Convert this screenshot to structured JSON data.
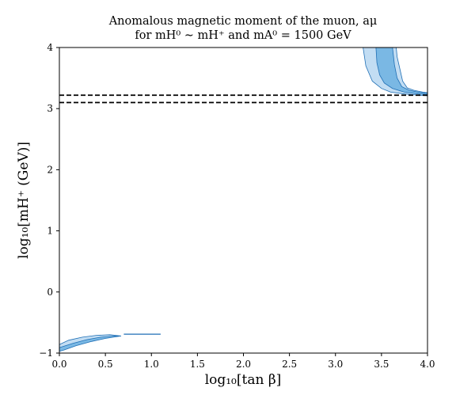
{
  "chart_data": {
    "type": "area",
    "title_line1": "Anomalous magnetic moment of the muon, aμ",
    "title_line2": "for mH⁰ ∼ mH⁺ and mA⁰ = 1500 GeV",
    "xlabel": "log₁₀[tan β]",
    "ylabel": "log₁₀[mH⁺ (GeV)]",
    "xlim": [
      0.0,
      4.0
    ],
    "ylim": [
      -1,
      4
    ],
    "x_ticks": [
      0.0,
      0.5,
      1.0,
      1.5,
      2.0,
      2.5,
      3.0,
      3.5,
      4.0
    ],
    "x_tick_labels": [
      "0.0",
      "0.5",
      "1.0",
      "1.5",
      "2.0",
      "2.5",
      "3.0",
      "3.5",
      "4.0"
    ],
    "y_ticks": [
      -1,
      0,
      1,
      2,
      3,
      4
    ],
    "y_tick_labels": [
      "−1",
      "0",
      "1",
      "2",
      "3",
      "4"
    ],
    "grid": false,
    "colors": {
      "outer_band": "#c2ddf3",
      "inner_band": "#7ab8e4",
      "band_edge": "#1f6fb5",
      "reference_line": "#000000"
    },
    "reference_lines": [
      {
        "orientation": "horizontal",
        "y": 3.22,
        "style": "dashed"
      },
      {
        "orientation": "horizontal",
        "y": 3.1,
        "style": "dashed"
      }
    ],
    "regions": [
      {
        "kind": "outer",
        "polygon": [
          [
            3.3,
            4.0
          ],
          [
            3.33,
            3.7
          ],
          [
            3.4,
            3.45
          ],
          [
            3.5,
            3.33
          ],
          [
            3.6,
            3.27
          ],
          [
            3.75,
            3.24
          ],
          [
            3.9,
            3.22
          ],
          [
            4.0,
            3.21
          ],
          [
            4.0,
            3.26
          ],
          [
            3.95,
            3.27
          ],
          [
            3.85,
            3.3
          ],
          [
            3.78,
            3.34
          ],
          [
            3.73,
            3.45
          ],
          [
            3.7,
            3.65
          ],
          [
            3.67,
            3.85
          ],
          [
            3.66,
            4.0
          ]
        ]
      },
      {
        "kind": "inner",
        "polygon": [
          [
            3.44,
            4.0
          ],
          [
            3.45,
            3.75
          ],
          [
            3.48,
            3.55
          ],
          [
            3.53,
            3.42
          ],
          [
            3.62,
            3.33
          ],
          [
            3.75,
            3.27
          ],
          [
            3.9,
            3.24
          ],
          [
            4.0,
            3.23
          ],
          [
            4.0,
            3.25
          ],
          [
            3.9,
            3.27
          ],
          [
            3.8,
            3.3
          ],
          [
            3.72,
            3.36
          ],
          [
            3.67,
            3.5
          ],
          [
            3.64,
            3.72
          ],
          [
            3.62,
            4.0
          ]
        ]
      },
      {
        "kind": "outer",
        "polygon": [
          [
            0.0,
            -0.86
          ],
          [
            0.1,
            -0.79
          ],
          [
            0.25,
            -0.74
          ],
          [
            0.4,
            -0.71
          ],
          [
            0.55,
            -0.7
          ],
          [
            0.67,
            -0.72
          ],
          [
            0.55,
            -0.74
          ],
          [
            0.4,
            -0.78
          ],
          [
            0.2,
            -0.86
          ],
          [
            0.08,
            -0.93
          ],
          [
            0.0,
            -0.97
          ]
        ]
      },
      {
        "kind": "inner",
        "polygon": [
          [
            0.0,
            -0.91
          ],
          [
            0.15,
            -0.84
          ],
          [
            0.3,
            -0.78
          ],
          [
            0.45,
            -0.74
          ],
          [
            0.6,
            -0.72
          ],
          [
            0.67,
            -0.72
          ],
          [
            0.5,
            -0.76
          ],
          [
            0.35,
            -0.81
          ],
          [
            0.18,
            -0.88
          ],
          [
            0.05,
            -0.95
          ],
          [
            0.0,
            -0.97
          ]
        ]
      },
      {
        "kind": "line",
        "polygon": [
          [
            0.7,
            -0.69
          ],
          [
            1.1,
            -0.69
          ]
        ]
      }
    ]
  }
}
